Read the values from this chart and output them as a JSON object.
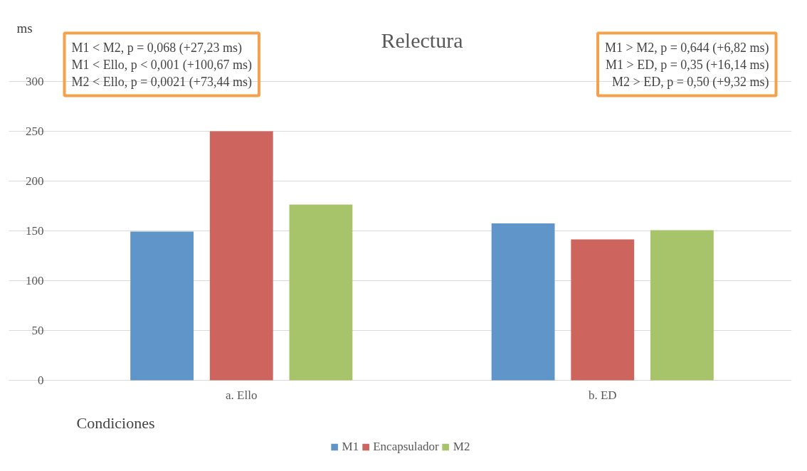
{
  "chart_data": {
    "type": "bar",
    "title": "Relectura",
    "xlabel": "Condiciones",
    "ylabel": "ms",
    "categories": [
      "a. Ello",
      "b. ED"
    ],
    "series": [
      {
        "name": "M1",
        "color": "#5f95c8",
        "values": [
          149.3,
          157.5
        ]
      },
      {
        "name": "Encapsulador",
        "color": "#cd645d",
        "values": [
          250,
          141.4
        ]
      },
      {
        "name": "M2",
        "color": "#a8c46a",
        "values": [
          176.5,
          150.7
        ]
      }
    ],
    "ylim": [
      0,
      300
    ],
    "yticks": [
      0,
      50,
      100,
      150,
      200,
      250,
      300
    ],
    "grid": "y",
    "legend": "bottom",
    "annotations": [
      "M1 < M2, p = 0,068 (+27,23 ms)\nM1 < Ello, p < 0,001 (+100,67 ms)\nM2 < Ello, p = 0,0021 (+73,44 ms)",
      "M1 > M2, p = 0,644 (+6,82 ms)\nM1 > ED, p = 0,35 (+16,14 ms)\nM2 > ED, p = 0,50 (+9,32 ms)"
    ]
  }
}
